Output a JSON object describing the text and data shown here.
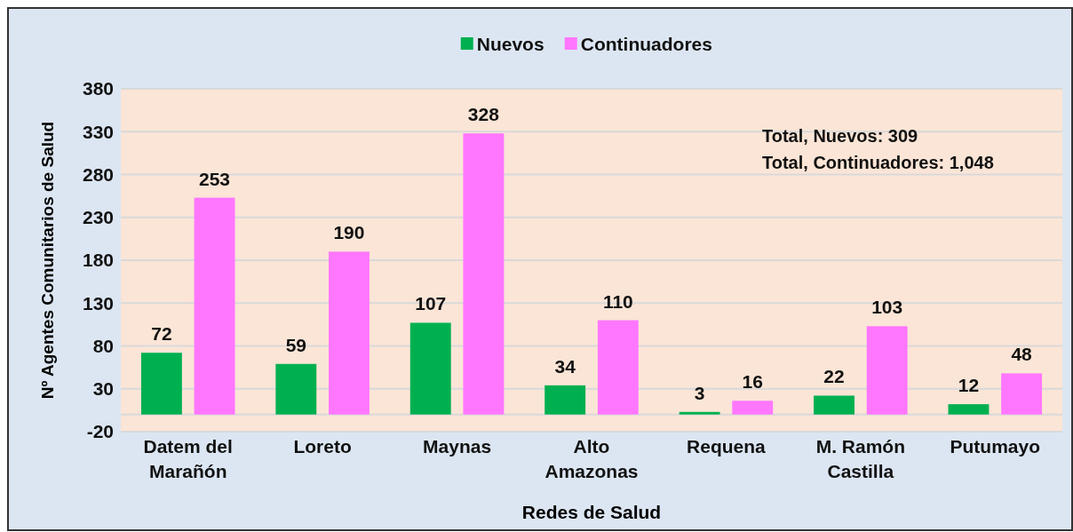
{
  "chart_data": {
    "type": "bar",
    "xlabel": "Redes de Salud",
    "ylabel": "Nº Agentes Comunitarios de Salud",
    "categories": [
      "Datem del Marañón",
      "Loreto",
      "Maynas",
      "Alto Amazonas",
      "Requena",
      "M. Ramón Castilla",
      "Putumayo"
    ],
    "series": [
      {
        "name": "Nuevos",
        "color": "#00b050",
        "values": [
          72,
          59,
          107,
          34,
          3,
          22,
          12
        ]
      },
      {
        "name": "Continuadores",
        "color": "#ff77ff",
        "values": [
          253,
          190,
          328,
          110,
          16,
          103,
          48
        ]
      }
    ],
    "ylim": [
      -20,
      380
    ],
    "yticks": [
      -20,
      30,
      80,
      130,
      180,
      230,
      280,
      330,
      380
    ],
    "grid": "y",
    "legend": "top",
    "data_labels": true,
    "annotations": [
      "Total, Nuevos: 309",
      "Total, Continuadores: 1,048"
    ]
  }
}
